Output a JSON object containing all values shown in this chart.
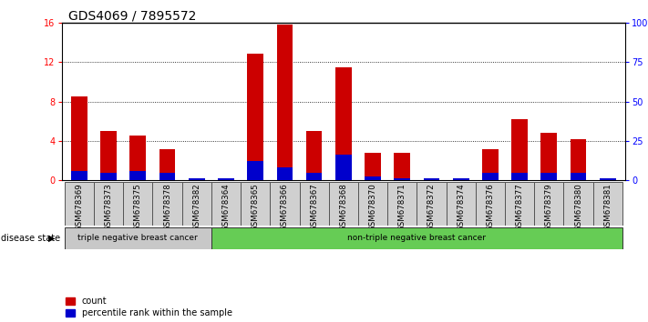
{
  "title": "GDS4069 / 7895572",
  "samples": [
    "GSM678369",
    "GSM678373",
    "GSM678375",
    "GSM678378",
    "GSM678382",
    "GSM678364",
    "GSM678365",
    "GSM678366",
    "GSM678367",
    "GSM678368",
    "GSM678370",
    "GSM678371",
    "GSM678372",
    "GSM678374",
    "GSM678376",
    "GSM678377",
    "GSM678379",
    "GSM678380",
    "GSM678381"
  ],
  "count_values": [
    8.5,
    5.0,
    4.5,
    3.2,
    0.0,
    0.0,
    12.8,
    15.8,
    5.0,
    11.5,
    2.8,
    2.8,
    0.0,
    0.0,
    3.2,
    6.2,
    4.8,
    4.2,
    0.0
  ],
  "percentile_values_pct": [
    6,
    5,
    6,
    5,
    1.5,
    1.5,
    12,
    8,
    5,
    16,
    2.5,
    1.5,
    1.5,
    1.5,
    5,
    5,
    5,
    5,
    1.5
  ],
  "ylim_left": [
    0,
    16
  ],
  "ylim_right": [
    0,
    100
  ],
  "yticks_left": [
    0,
    4,
    8,
    12,
    16
  ],
  "yticks_right": [
    0,
    25,
    50,
    75,
    100
  ],
  "bar_color_red": "#cc0000",
  "bar_color_blue": "#0000cc",
  "bar_width": 0.55,
  "group1_label": "triple negative breast cancer",
  "group2_label": "non-triple negative breast cancer",
  "group1_count": 5,
  "group2_count": 14,
  "legend_count": "count",
  "legend_pct": "percentile rank within the sample",
  "disease_state_label": "disease state",
  "group1_bg": "#c8c8c8",
  "group2_bg": "#66cc55",
  "tick_bg": "#d0d0d0",
  "title_fontsize": 10,
  "tick_fontsize": 7,
  "label_fontsize": 7.5
}
